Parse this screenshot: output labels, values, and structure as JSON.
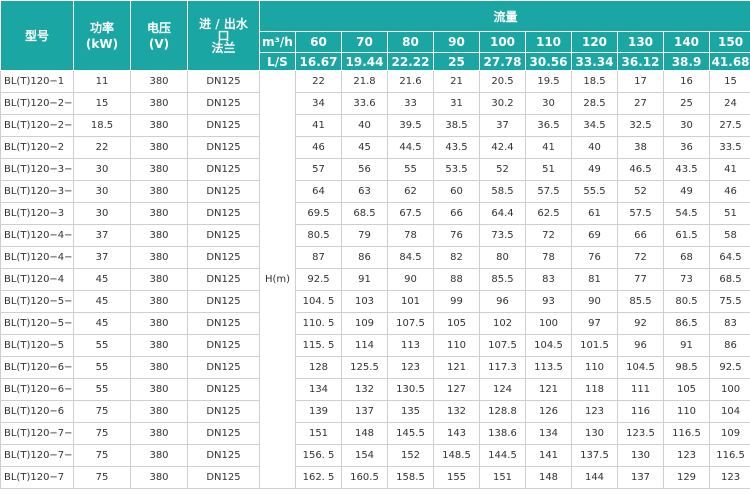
{
  "header": {
    "model": "型号",
    "power": "功率\n(kW)",
    "voltage": "电压\n(V)",
    "inlet": "进 / 出水\n口\n法兰",
    "flow": "流量",
    "flow_m3h_unit": "m³/h",
    "flow_ls_unit": "L/S",
    "flow_m3h": [
      "60",
      "70",
      "80",
      "90",
      "100",
      "110",
      "120",
      "130",
      "140",
      "150"
    ],
    "flow_ls": [
      "16.67",
      "19.44",
      "22.22",
      "25",
      "27.78",
      "30.56",
      "33.34",
      "36.12",
      "38.9",
      "41.68"
    ]
  },
  "head_label": "H(m)",
  "rows": [
    {
      "model": "BL(T)120−1",
      "power": "11",
      "voltage": "380",
      "flange": "DN125",
      "heads": [
        "22",
        "21.8",
        "21.6",
        "21",
        "20.5",
        "19.5",
        "18.5",
        "17",
        "16",
        "15"
      ]
    },
    {
      "model": "BL(T)120−2−2",
      "power": "15",
      "voltage": "380",
      "flange": "DN125",
      "heads": [
        "34",
        "33.6",
        "33",
        "31",
        "30.2",
        "30",
        "28.5",
        "27",
        "25",
        "24"
      ]
    },
    {
      "model": "BL(T)120−2−1",
      "power": "18.5",
      "voltage": "380",
      "flange": "DN125",
      "heads": [
        "41",
        "40",
        "39.5",
        "38.5",
        "37",
        "36.5",
        "34.5",
        "32.5",
        "30",
        "27.5"
      ]
    },
    {
      "model": "BL(T)120−2",
      "power": "22",
      "voltage": "380",
      "flange": "DN125",
      "heads": [
        "46",
        "45",
        "44.5",
        "43.5",
        "42.4",
        "41",
        "40",
        "38",
        "36",
        "33.5"
      ]
    },
    {
      "model": "BL(T)120−3−2",
      "power": "30",
      "voltage": "380",
      "flange": "DN125",
      "heads": [
        "57",
        "56",
        "55",
        "53.5",
        "52",
        "51",
        "49",
        "46.5",
        "43.5",
        "41"
      ]
    },
    {
      "model": "BL(T)120−3−1",
      "power": "30",
      "voltage": "380",
      "flange": "DN125",
      "heads": [
        "64",
        "63",
        "62",
        "60",
        "58.5",
        "57.5",
        "55.5",
        "52",
        "49",
        "46"
      ]
    },
    {
      "model": "BL(T)120−3",
      "power": "30",
      "voltage": "380",
      "flange": "DN125",
      "heads": [
        "69.5",
        "68.5",
        "67.5",
        "66",
        "64.4",
        "62.5",
        "61",
        "57.5",
        "54.5",
        "51"
      ]
    },
    {
      "model": "BL(T)120−4−2",
      "power": "37",
      "voltage": "380",
      "flange": "DN125",
      "heads": [
        "80.5",
        "79",
        "78",
        "76",
        "73.5",
        "72",
        "69",
        "66",
        "61.5",
        "58"
      ]
    },
    {
      "model": "BL(T)120−4−1",
      "power": "37",
      "voltage": "380",
      "flange": "DN125",
      "heads": [
        "87",
        "86",
        "84.5",
        "82",
        "80",
        "78",
        "76",
        "72",
        "68",
        "64.5"
      ]
    },
    {
      "model": "BL(T)120−4",
      "power": "45",
      "voltage": "380",
      "flange": "DN125",
      "heads": [
        "92.5",
        "91",
        "90",
        "88",
        "85.5",
        "83",
        "81",
        "77",
        "73",
        "68.5"
      ]
    },
    {
      "model": "BL(T)120−5−2",
      "power": "45",
      "voltage": "380",
      "flange": "DN125",
      "heads": [
        "104. 5",
        "103",
        "101",
        "99",
        "96",
        "93",
        "90",
        "85.5",
        "80.5",
        "75.5"
      ]
    },
    {
      "model": "BL(T)120−5−1",
      "power": "45",
      "voltage": "380",
      "flange": "DN125",
      "heads": [
        "110. 5",
        "109",
        "107.5",
        "105",
        "102",
        "100",
        "97",
        "92",
        "86.5",
        "83"
      ]
    },
    {
      "model": "BL(T)120−5",
      "power": "55",
      "voltage": "380",
      "flange": "DN125",
      "heads": [
        "115. 5",
        "114",
        "113",
        "110",
        "107.5",
        "104.5",
        "101.5",
        "96",
        "91",
        "86"
      ]
    },
    {
      "model": "BL(T)120−6−2",
      "power": "55",
      "voltage": "380",
      "flange": "DN125",
      "heads": [
        "128",
        "125.5",
        "123",
        "121",
        "117.3",
        "113.5",
        "110",
        "104.5",
        "98.5",
        "92.5"
      ]
    },
    {
      "model": "BL(T)120−6−1",
      "power": "55",
      "voltage": "380",
      "flange": "DN125",
      "heads": [
        "134",
        "132",
        "130.5",
        "127",
        "124",
        "121",
        "118",
        "111",
        "105",
        "100"
      ]
    },
    {
      "model": "BL(T)120−6",
      "power": "75",
      "voltage": "380",
      "flange": "DN125",
      "heads": [
        "139",
        "137",
        "135",
        "132",
        "128.8",
        "126",
        "123",
        "116",
        "110",
        "104"
      ]
    },
    {
      "model": "BL(T)120−7−2",
      "power": "75",
      "voltage": "380",
      "flange": "DN125",
      "heads": [
        "151",
        "148",
        "145.5",
        "143",
        "138.6",
        "134",
        "130",
        "123.5",
        "116.5",
        "109"
      ]
    },
    {
      "model": "BL(T)120−7−1",
      "power": "75",
      "voltage": "380",
      "flange": "DN125",
      "heads": [
        "156. 5",
        "154",
        "152",
        "148.5",
        "144.5",
        "141",
        "137.5",
        "130",
        "123",
        "116.5"
      ]
    },
    {
      "model": "BL(T)120−7",
      "power": "75",
      "voltage": "380",
      "flange": "DN125",
      "heads": [
        "162. 5",
        "160.5",
        "158.5",
        "155",
        "151",
        "148",
        "144",
        "137",
        "129",
        "123"
      ]
    }
  ]
}
